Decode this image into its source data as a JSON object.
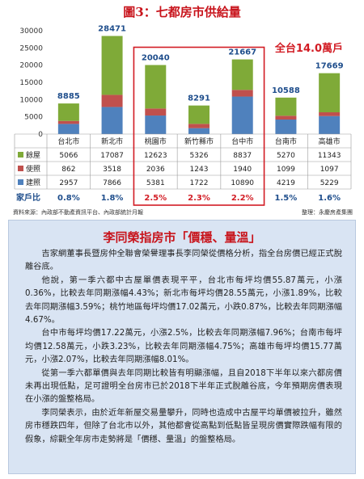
{
  "figure": {
    "title": "圖3：七都房市供給量",
    "annotation": "全台14.0萬戶",
    "source": "資料來源：內政部不動產資訊平台、內政部統計月報",
    "credit": "整理：永慶房產集團"
  },
  "colors": {
    "series_1": "#7faa38",
    "series_2": "#c0504d",
    "series_3": "#4f81bd",
    "highlight": "#d21c24",
    "accent": "#c8141c",
    "article_bg": "#d9e4f3"
  },
  "chart_data": {
    "type": "bar",
    "stacked": true,
    "ylim": [
      0,
      30000
    ],
    "yticks": [
      0,
      5000,
      10000,
      15000,
      20000,
      25000,
      30000
    ],
    "tick_labels": [
      "0",
      "5000",
      "10000",
      "15000",
      "20000",
      "25000",
      "30000"
    ],
    "categories": [
      "台北市",
      "新北市",
      "桃園市",
      "新竹縣市",
      "台中市",
      "台南市",
      "高雄市"
    ],
    "totals": [
      8885,
      28471,
      20040,
      8291,
      21667,
      10588,
      17669
    ],
    "total_labels": [
      "8885",
      "28471",
      "20040",
      "8291",
      "21667",
      "10588",
      "17669"
    ],
    "series": [
      {
        "name": "餘屋",
        "values": [
          5066,
          17087,
          12623,
          5326,
          8837,
          5270,
          11343
        ],
        "labels": [
          "5066",
          "17087",
          "12623",
          "5326",
          "8837",
          "5270",
          "11343"
        ]
      },
      {
        "name": "使照",
        "values": [
          862,
          3518,
          2036,
          1243,
          1940,
          1099,
          1097
        ],
        "labels": [
          "862",
          "3518",
          "2036",
          "1243",
          "1940",
          "1099",
          "1097"
        ]
      },
      {
        "name": "建照",
        "values": [
          2957,
          7866,
          5381,
          1722,
          10890,
          4219,
          5229
        ],
        "labels": [
          "2957",
          "7866",
          "5381",
          "1722",
          "10890",
          "4219",
          "5229"
        ]
      }
    ],
    "ratio_row": {
      "name": "家戶比",
      "values": [
        "0.8%",
        "1.8%",
        "2.5%",
        "2.3%",
        "2.2%",
        "1.5%",
        "1.6%"
      ]
    },
    "grid": false,
    "legend": "table-below"
  },
  "article": {
    "title": "李同榮指房市「價穩、量溫」",
    "paragraphs": [
      "吉家網董事長暨房仲全聯會榮譽理事長李同榮從價格分析，指全台房價已經正式脫離谷底。",
      "他說，第一季六都中古屋單價表現平平，台北市每坪均價55.87萬元，小漲0.36%，比較去年同期漲幅4.43%；新北市每坪均價28.55萬元，小漲1.89%，比較去年同期漲幅3.59%；桃竹地區每坪均價17.02萬元，小跌0.87%，比較去年同期漲幅4.67%。",
      "台中市每坪均價17.22萬元，小漲2.5%，比較去年同期漲幅7.96%；台南市每坪均價12.58萬元，小跌3.23%，比較去年同期漲幅4.75%；高雄市每坪均價15.77萬元，小漲2.07%，比較去年同期漲幅8.01%。",
      "從第一季六都單價與去年同期比較皆有明顯漲幅，且自2018下半年以來六都房價未再出現低點，足可證明全台房市已於2018下半年正式脫離谷底，今年預期房價表現在小漲的盤整格局。",
      "李同榮表示，由於近年新屋交易量攀升，同時也造成中古屋平均單價被拉升，雖然房市穩跌四年，但除了台北市以外，其他都會從高點到低點皆呈現房價實際跌幅有限的假象，綜觀全年房市走勢將是「價穩、量溫」的盤整格局。"
    ]
  }
}
